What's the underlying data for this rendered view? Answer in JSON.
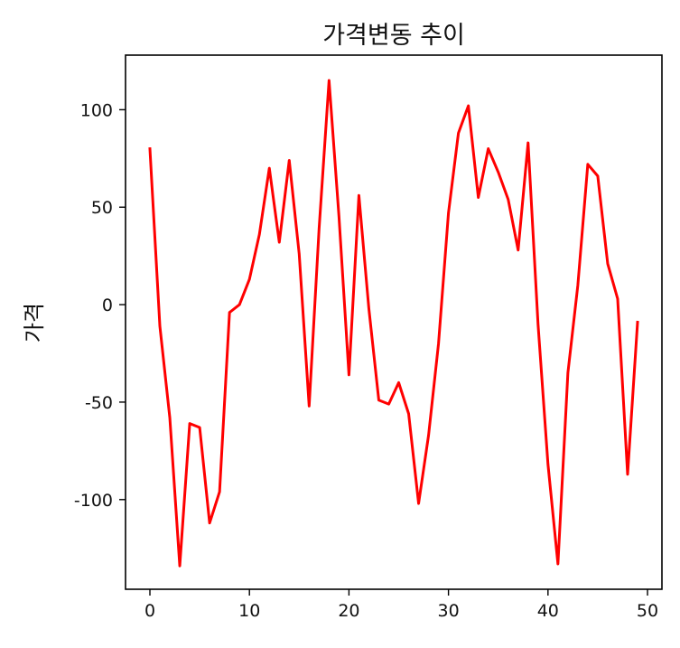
{
  "chart_data": {
    "type": "line",
    "title": "가격변동 추이",
    "xlabel": "",
    "ylabel": "가격",
    "xlim": [
      -2.45,
      51.45
    ],
    "ylim": [
      -146,
      128
    ],
    "x_ticks": [
      0,
      10,
      20,
      30,
      40,
      50
    ],
    "y_ticks": [
      -100,
      -50,
      0,
      50,
      100
    ],
    "grid": false,
    "series": [
      {
        "color": "#ff0000",
        "x": [
          0,
          1,
          2,
          3,
          4,
          5,
          6,
          7,
          8,
          9,
          10,
          11,
          12,
          13,
          14,
          15,
          16,
          17,
          18,
          19,
          20,
          21,
          22,
          23,
          24,
          25,
          26,
          27,
          28,
          29,
          30,
          31,
          32,
          33,
          34,
          35,
          36,
          37,
          38,
          39,
          40,
          41,
          42,
          43,
          44,
          45,
          46,
          47,
          48,
          49
        ],
        "values": [
          80,
          -11,
          -58,
          -134,
          -61,
          -63,
          -112,
          -96,
          -4,
          0,
          13,
          36,
          70,
          32,
          74,
          26,
          -52,
          39,
          115,
          45,
          -36,
          56,
          -2,
          -49,
          -51,
          -40,
          -56,
          -102,
          -67,
          -20,
          47,
          88,
          102,
          55,
          80,
          68,
          54,
          28,
          83,
          -10,
          -82,
          -133,
          -35,
          10,
          72,
          66,
          21,
          3,
          -87,
          -9
        ]
      }
    ]
  }
}
